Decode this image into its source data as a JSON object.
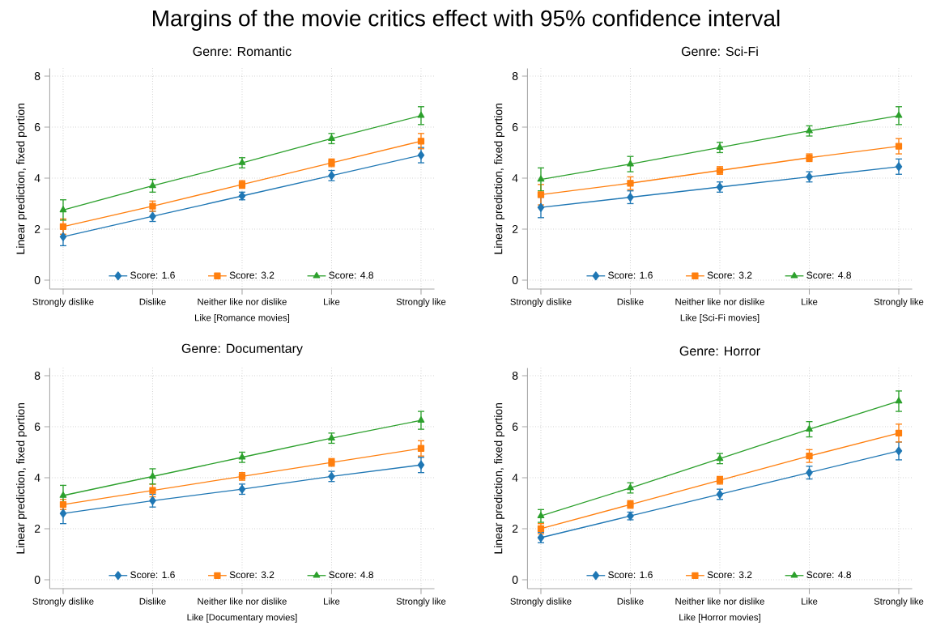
{
  "chart_data": [
    {
      "type": "line",
      "title": "Genre: Romantic",
      "annotations": [
        "Margins of the movie critics effect with 95% confidence interval"
      ],
      "xlabel": "Like [Romance movies]",
      "ylabel": "Linear prediction, fixed portion",
      "categories": [
        "Strongly dislike",
        "Dislike",
        "Neither like nor dislike",
        "Like",
        "Strongly like"
      ],
      "series": [
        {
          "name": "Score: 1.6",
          "color": "#1f77b4",
          "marker": "diamond",
          "values": [
            1.7,
            2.5,
            3.3,
            4.1,
            4.9
          ],
          "errors": [
            0.35,
            0.2,
            0.15,
            0.2,
            0.3
          ]
        },
        {
          "name": "Score: 3.2",
          "color": "#ff7f0e",
          "marker": "square",
          "values": [
            2.1,
            2.9,
            3.75,
            4.6,
            5.45
          ],
          "errors": [
            0.3,
            0.2,
            0.15,
            0.15,
            0.3
          ]
        },
        {
          "name": "Score: 4.8",
          "color": "#2ca02c",
          "marker": "triangle",
          "values": [
            2.75,
            3.7,
            4.6,
            5.55,
            6.45
          ],
          "errors": [
            0.4,
            0.25,
            0.2,
            0.2,
            0.35
          ]
        }
      ],
      "ylim": [
        -0.35,
        8.3
      ],
      "yticks": [
        0,
        2,
        4,
        6,
        8
      ],
      "grid": true,
      "legend": "bottom",
      "line_style": "solid"
    },
    {
      "type": "line",
      "title": "Genre: Sci-Fi",
      "xlabel": "Like [Sci-Fi movies]",
      "ylabel": "Linear prediction, fixed portion",
      "categories": [
        "Strongly dislike",
        "Dislike",
        "Neither like nor dislike",
        "Like",
        "Strongly like"
      ],
      "series": [
        {
          "name": "Score: 1.6",
          "color": "#1f77b4",
          "marker": "diamond",
          "values": [
            2.85,
            3.25,
            3.65,
            4.05,
            4.45
          ],
          "errors": [
            0.4,
            0.25,
            0.2,
            0.2,
            0.3
          ]
        },
        {
          "name": "Score: 3.2",
          "color": "#ff7f0e",
          "marker": "square",
          "values": [
            3.35,
            3.8,
            4.3,
            4.8,
            5.25
          ],
          "errors": [
            0.4,
            0.25,
            0.15,
            0.15,
            0.3
          ]
        },
        {
          "name": "Score: 4.8",
          "color": "#2ca02c",
          "marker": "triangle",
          "values": [
            3.95,
            4.55,
            5.2,
            5.85,
            6.45
          ],
          "errors": [
            0.45,
            0.3,
            0.2,
            0.2,
            0.35
          ]
        }
      ],
      "ylim": [
        -0.35,
        8.3
      ],
      "yticks": [
        0,
        2,
        4,
        6,
        8
      ],
      "grid": true,
      "legend": "bottom",
      "line_style": "solid"
    },
    {
      "type": "line",
      "title": "Genre: Documentary",
      "xlabel": "Like [Documentary movies]",
      "ylabel": "Linear prediction, fixed portion",
      "categories": [
        "Strongly dislike",
        "Dislike",
        "Neither like nor dislike",
        "Like",
        "Strongly like"
      ],
      "series": [
        {
          "name": "Score: 1.6",
          "color": "#1f77b4",
          "marker": "diamond",
          "values": [
            2.6,
            3.1,
            3.55,
            4.05,
            4.5
          ],
          "errors": [
            0.4,
            0.25,
            0.2,
            0.2,
            0.3
          ]
        },
        {
          "name": "Score: 3.2",
          "color": "#ff7f0e",
          "marker": "square",
          "values": [
            2.95,
            3.5,
            4.05,
            4.6,
            5.15
          ],
          "errors": [
            0.2,
            0.25,
            0.15,
            0.15,
            0.3
          ]
        },
        {
          "name": "Score: 4.8",
          "color": "#2ca02c",
          "marker": "triangle",
          "values": [
            3.3,
            4.05,
            4.8,
            5.55,
            6.25
          ],
          "errors": [
            0.4,
            0.3,
            0.2,
            0.2,
            0.35
          ]
        }
      ],
      "ylim": [
        -0.35,
        8.3
      ],
      "yticks": [
        0,
        2,
        4,
        6,
        8
      ],
      "grid": true,
      "legend": "bottom",
      "line_style": "solid"
    },
    {
      "type": "line",
      "title": "Genre: Horror",
      "xlabel": "Like [Horror movies]",
      "ylabel": "Linear prediction, fixed portion",
      "categories": [
        "Strongly dislike",
        "Dislike",
        "Neither like nor dislike",
        "Like",
        "Strongly like"
      ],
      "series": [
        {
          "name": "Score: 1.6",
          "color": "#1f77b4",
          "marker": "diamond",
          "values": [
            1.65,
            2.5,
            3.35,
            4.2,
            5.05
          ],
          "errors": [
            0.2,
            0.15,
            0.2,
            0.25,
            0.35
          ]
        },
        {
          "name": "Score: 3.2",
          "color": "#ff7f0e",
          "marker": "square",
          "values": [
            2.0,
            2.95,
            3.9,
            4.85,
            5.75
          ],
          "errors": [
            0.2,
            0.15,
            0.15,
            0.25,
            0.35
          ]
        },
        {
          "name": "Score: 4.8",
          "color": "#2ca02c",
          "marker": "triangle",
          "values": [
            2.5,
            3.6,
            4.75,
            5.9,
            7.0
          ],
          "errors": [
            0.25,
            0.2,
            0.2,
            0.3,
            0.4
          ]
        }
      ],
      "ylim": [
        -0.35,
        8.3
      ],
      "yticks": [
        0,
        2,
        4,
        6,
        8
      ],
      "grid": true,
      "legend": "bottom",
      "line_style": "solid"
    }
  ]
}
